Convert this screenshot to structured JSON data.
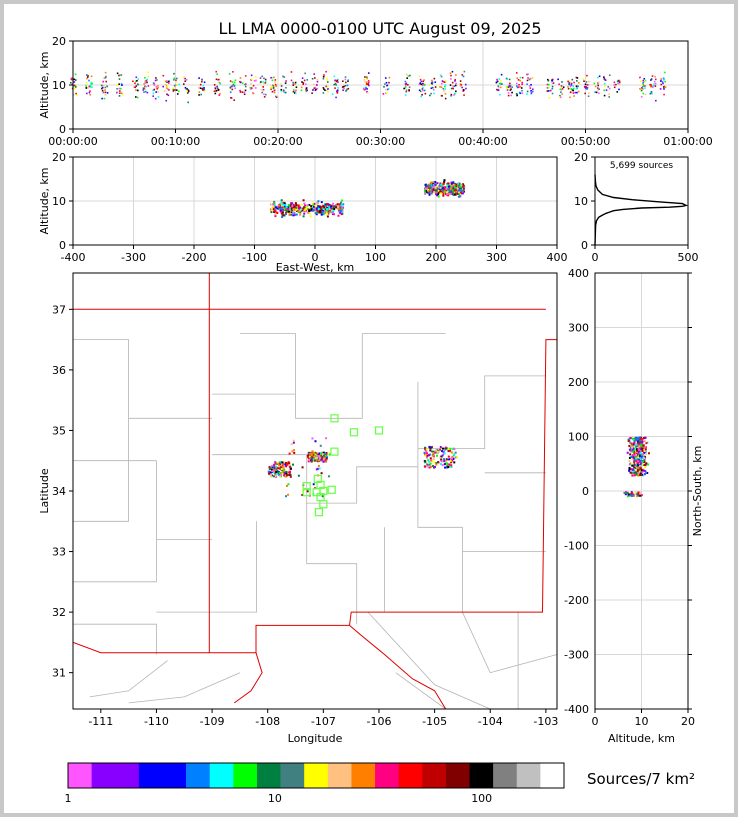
{
  "title": "LL LMA 0000-0100 UTC August 09, 2025",
  "colorbar": {
    "label": "Sources/7 km²",
    "tick_labels": [
      "1",
      "10",
      "100"
    ],
    "colors": [
      "#ff55ff",
      "#8800ff",
      "#8800ff",
      "#0000ff",
      "#0000ff",
      "#0080ff",
      "#00ffff",
      "#00ff00",
      "#008040",
      "#408080",
      "#ffff00",
      "#ffc080",
      "#ff8000",
      "#ff0080",
      "#ff0000",
      "#c00000",
      "#800000",
      "#000000",
      "#808080",
      "#c0c0c0",
      "#ffffff"
    ]
  },
  "chart_data": [
    {
      "type": "scatter",
      "name": "time-altitude",
      "ylabel": "Altitude, km",
      "x_ticks": [
        "00:00:00",
        "00:10:00",
        "00:20:00",
        "00:30:00",
        "00:40:00",
        "00:50:00",
        "01:00:00"
      ],
      "xlim_minutes": [
        0,
        60
      ],
      "ylim": [
        0,
        20
      ],
      "y_ticks": [
        0,
        10,
        20
      ],
      "grid": true,
      "active_minutes": [
        0,
        1.5,
        3,
        4.5,
        6,
        7,
        8,
        9,
        10,
        11,
        12.5,
        14,
        15.5,
        16.5,
        17.5,
        18.5,
        19.5,
        20.5,
        21.5,
        22.5,
        23.5,
        24.5,
        25.5,
        26.5,
        28.5,
        30.5,
        32.5,
        34,
        35,
        36,
        37,
        38,
        41.5,
        42.5,
        43.5,
        44.5,
        46.5,
        47.5,
        48.5,
        49,
        50,
        51,
        52,
        53,
        55.5,
        56.5,
        57.5
      ]
    },
    {
      "type": "scatter",
      "name": "east-west-altitude",
      "xlabel": "East-West, km",
      "ylabel": "Altitude, km",
      "xlim": [
        -400,
        400
      ],
      "ylim": [
        0,
        20
      ],
      "x_ticks": [
        -400,
        -300,
        -200,
        -100,
        0,
        100,
        200,
        300,
        400
      ],
      "y_ticks": [
        0,
        10,
        20
      ],
      "grid": true,
      "clusters": [
        {
          "x_range": [
            -75,
            45
          ],
          "z_range": [
            5,
            12
          ],
          "z_peak": 8.5
        },
        {
          "x_range": [
            180,
            245
          ],
          "z_range": [
            9,
            17
          ],
          "z_peak": 13
        }
      ]
    },
    {
      "type": "line",
      "name": "altitude-histogram",
      "annotation": "5,699 sources",
      "xlim": [
        0,
        500
      ],
      "ylim": [
        0,
        20
      ],
      "x_ticks": [
        0,
        500
      ],
      "y_ticks": [
        0,
        10,
        20
      ],
      "x": [
        0,
        3,
        8,
        20,
        40,
        60,
        80,
        100,
        150,
        250,
        400,
        470,
        490,
        470,
        350,
        200,
        100,
        40,
        15,
        5,
        2,
        0
      ],
      "y": [
        0,
        4.5,
        5.5,
        6.3,
        6.8,
        7.2,
        7.5,
        7.8,
        8.1,
        8.4,
        8.6,
        8.8,
        9.0,
        9.4,
        9.8,
        10.3,
        10.8,
        11.5,
        12.5,
        13.5,
        14.5,
        16
      ]
    },
    {
      "type": "scatter",
      "name": "plan-view",
      "xlabel": "Longitude",
      "ylabel": "Latitude",
      "xlim": [
        -111.5,
        -102.8
      ],
      "ylim": [
        30.4,
        37.6
      ],
      "x_ticks": [
        -111,
        -110,
        -109,
        -108,
        -107,
        -106,
        -105,
        -104,
        -103
      ],
      "y_ticks": [
        31,
        32,
        33,
        34,
        35,
        36,
        37
      ],
      "stations": [
        [
          -106.8,
          35.2
        ],
        [
          -106.45,
          34.97
        ],
        [
          -106.0,
          35.0
        ],
        [
          -106.8,
          34.65
        ],
        [
          -107.1,
          34.2
        ],
        [
          -107.3,
          34.08
        ],
        [
          -107.05,
          34.1
        ],
        [
          -107.3,
          33.98
        ],
        [
          -107.12,
          33.98
        ],
        [
          -107.0,
          34.0
        ],
        [
          -106.85,
          34.02
        ],
        [
          -107.05,
          33.9
        ],
        [
          -107.0,
          33.78
        ],
        [
          -107.08,
          33.65
        ]
      ],
      "clusters": [
        {
          "lon_range": [
            -108.0,
            -107.6
          ],
          "lat_range": [
            34.25,
            34.5
          ]
        },
        {
          "lon_range": [
            -107.3,
            -106.95
          ],
          "lat_range": [
            34.5,
            34.65
          ]
        },
        {
          "lon_range": [
            -105.2,
            -104.6
          ],
          "lat_range": [
            34.4,
            34.75
          ]
        },
        {
          "lon_range": [
            -107.7,
            -106.9
          ],
          "lat_range": [
            33.9,
            34.95
          ]
        }
      ]
    },
    {
      "type": "scatter",
      "name": "altitude-north-south",
      "xlabel": "Altitude, km",
      "ylabel": "North-South, km",
      "xlim": [
        0,
        20
      ],
      "ylim": [
        -400,
        400
      ],
      "x_ticks": [
        0,
        10,
        20
      ],
      "y_ticks": [
        -400,
        -300,
        -200,
        -100,
        0,
        100,
        200,
        300,
        400
      ],
      "grid": true,
      "clusters": [
        {
          "alt_range": [
            5,
            18
          ],
          "ns_range": [
            30,
            100
          ]
        },
        {
          "alt_range": [
            6,
            10
          ],
          "ns_range": [
            -8,
            0
          ]
        }
      ]
    }
  ]
}
